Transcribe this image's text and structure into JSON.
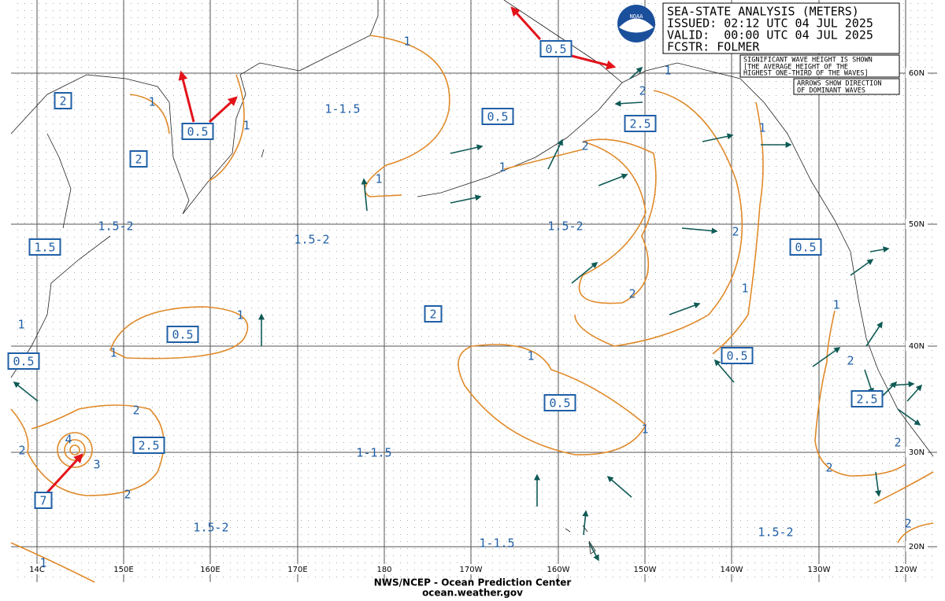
{
  "header": {
    "title": "SEA-STATE ANALYSIS (METERS)",
    "issued": "ISSUED: 02:12 UTC 04 JUL 2025",
    "valid": "VALID:  00:00 UTC 04 JUL 2025",
    "forecaster": "FCSTR: FOLMER"
  },
  "logo": "NOAA",
  "notes": [
    "SIGNIFICANT WAVE HEIGHT IS SHOWN",
    "[THE AVERAGE HEIGHT OF THE",
    "HIGHEST ONE-THIRD OF THE WAVES]"
  ],
  "arrow_note": [
    "ARROWS SHOW DIRECTION",
    "OF DOMINANT WAVES"
  ],
  "longitudes": [
    "14C",
    "150E",
    "160E",
    "170E",
    "180",
    "170W",
    "160W",
    "150W",
    "140W",
    "130W",
    "120W"
  ],
  "latitudes": [
    "60N",
    "50N",
    "40N",
    "30N",
    "20N"
  ],
  "boxed_labels": [
    "2",
    "0.5",
    "2",
    "1.5",
    "0.5",
    "0.5",
    "2.5",
    "7",
    "0.5",
    "0.5",
    "2.5",
    "2",
    "0.5",
    "0.5",
    "0.5",
    "2.5"
  ],
  "area_labels": [
    "1-1.5",
    "1.5-2",
    "1.5-2",
    "1.5-2",
    "1-1.5",
    "1.5-2",
    "1-1.5",
    "1.5-2"
  ],
  "contour_labels": [
    "1",
    "1",
    "1",
    "1",
    "1",
    "2",
    "1",
    "2",
    "1",
    "2",
    "2",
    "1",
    "1",
    "1",
    "1",
    "1",
    "1",
    "2",
    "1",
    "2",
    "4",
    "3",
    "2",
    "2",
    "2",
    "2",
    "2",
    "1"
  ],
  "footer": {
    "agency": "NWS/NCEP - Ocean Prediction Center",
    "url": "ocean.weather.gov"
  }
}
